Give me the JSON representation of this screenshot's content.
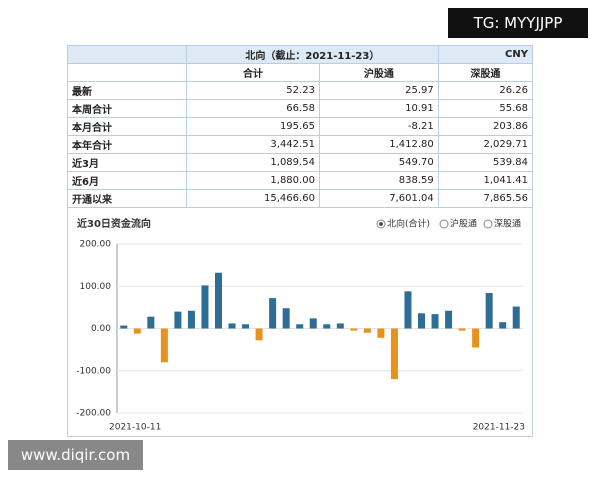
{
  "watermarks": {
    "top": "TG: MYYJJPP",
    "bottom": "www.diqir.com"
  },
  "table": {
    "title": "北向（截止：2021-11-23）",
    "currency": "CNY",
    "columns": [
      "合计",
      "沪股通",
      "深股通"
    ],
    "rows": [
      [
        "最新",
        "52.23",
        "25.97",
        "26.26"
      ],
      [
        "本周合计",
        "66.58",
        "10.91",
        "55.68"
      ],
      [
        "本月合计",
        "195.65",
        "-8.21",
        "203.86"
      ],
      [
        "本年合计",
        "3,442.51",
        "1,412.80",
        "2,029.71"
      ],
      [
        "近3月",
        "1,089.54",
        "549.70",
        "539.84"
      ],
      [
        "近6月",
        "1,880.00",
        "838.59",
        "1,041.41"
      ],
      [
        "开通以来",
        "15,466.60",
        "7,601.04",
        "7,865.56"
      ]
    ]
  },
  "chart_data": {
    "type": "bar",
    "title": "近30日资金流向",
    "options": [
      "北向(合计)",
      "沪股通",
      "深股通"
    ],
    "selected": 0,
    "categories": [
      "2021-10-11",
      null,
      null,
      null,
      null,
      null,
      null,
      null,
      null,
      null,
      null,
      null,
      null,
      null,
      null,
      null,
      null,
      null,
      null,
      null,
      null,
      null,
      null,
      null,
      null,
      null,
      null,
      null,
      null,
      "2021-11-23"
    ],
    "values": [
      7,
      -12,
      28,
      -80,
      40,
      42,
      102,
      132,
      12,
      10,
      -28,
      72,
      48,
      10,
      24,
      10,
      12,
      -5,
      -10,
      -22,
      -120,
      88,
      36,
      34,
      42,
      -5,
      -45,
      84,
      15,
      52
    ],
    "color": "#2e6e94",
    "negative_color": "#e8921e",
    "ylim": [
      -200,
      200
    ],
    "yticks": [
      {
        "value": -200,
        "label": "-200.00"
      },
      {
        "value": -100,
        "label": "-100.00"
      },
      {
        "value": 0,
        "label": "0.00"
      },
      {
        "value": 100,
        "label": "100.00"
      },
      {
        "value": 200,
        "label": "200.00"
      }
    ],
    "grid": true
  }
}
